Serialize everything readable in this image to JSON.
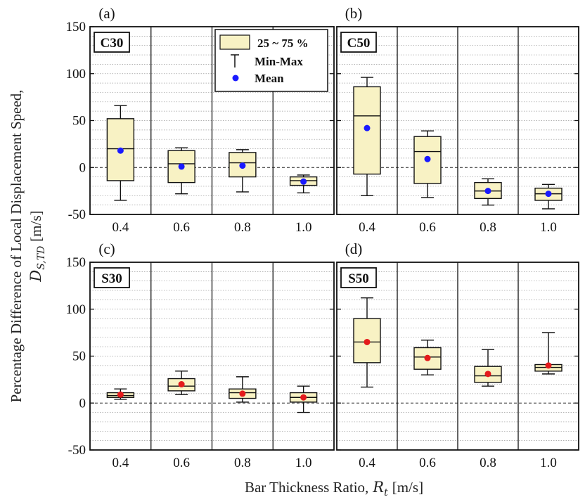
{
  "figure": {
    "y_axis_title": "Percentage Difference of  Local Displacement Speed,",
    "y_axis_symbol": "D",
    "y_axis_subscript": "S,TD",
    "y_axis_unit": "[m/s]",
    "x_axis_title": "Bar Thickness Ratio,",
    "x_axis_symbol": "R",
    "x_axis_subscript": "t",
    "x_axis_unit": "[m/s]"
  },
  "legend": {
    "box_label": "25 ~ 75 %",
    "whisker_label": "Min-Max",
    "mean_label": "Mean"
  },
  "colors": {
    "box_fill": "#f8f2c4",
    "mean_top": "#1a1aff",
    "mean_bottom": "#e41a1c",
    "grid": "#9a9a9a",
    "axis": "#111111"
  },
  "chart_data": [
    {
      "type": "box",
      "panel_letter": "(a)",
      "tag": "C30",
      "categories": [
        "0.4",
        "0.6",
        "0.8",
        "1.0"
      ],
      "ylim": [
        -50,
        150
      ],
      "yticks": [
        "-50",
        "0",
        "50",
        "100",
        "150"
      ],
      "show_y_ticklabels": true,
      "mean_color": "#1a1aff",
      "boxes": [
        {
          "min": -35,
          "q1": -14,
          "median": 20,
          "q3": 52,
          "max": 66,
          "mean": 18
        },
        {
          "min": -28,
          "q1": -16,
          "median": 4,
          "q3": 18,
          "max": 21,
          "mean": 1
        },
        {
          "min": -26,
          "q1": -10,
          "median": 5,
          "q3": 16,
          "max": 19,
          "mean": 2
        },
        {
          "min": -27,
          "q1": -19,
          "median": -14,
          "q3": -10,
          "max": -8,
          "mean": -15
        }
      ]
    },
    {
      "type": "box",
      "panel_letter": "(b)",
      "tag": "C50",
      "categories": [
        "0.4",
        "0.6",
        "0.8",
        "1.0"
      ],
      "ylim": [
        -50,
        150
      ],
      "yticks": [
        "-50",
        "0",
        "50",
        "100",
        "150"
      ],
      "show_y_ticklabels": false,
      "mean_color": "#1a1aff",
      "boxes": [
        {
          "min": -30,
          "q1": -7,
          "median": 55,
          "q3": 86,
          "max": 96,
          "mean": 42
        },
        {
          "min": -32,
          "q1": -17,
          "median": 17,
          "q3": 33,
          "max": 39,
          "mean": 9
        },
        {
          "min": -40,
          "q1": -33,
          "median": -25,
          "q3": -16,
          "max": -12,
          "mean": -25
        },
        {
          "min": -44,
          "q1": -35,
          "median": -28,
          "q3": -22,
          "max": -18,
          "mean": -28
        }
      ]
    },
    {
      "type": "box",
      "panel_letter": "(c)",
      "tag": "S30",
      "categories": [
        "0.4",
        "0.6",
        "0.8",
        "1.0"
      ],
      "ylim": [
        -50,
        150
      ],
      "yticks": [
        "-50",
        "0",
        "50",
        "100",
        "150"
      ],
      "show_y_ticklabels": true,
      "mean_color": "#e41a1c",
      "boxes": [
        {
          "min": 4,
          "q1": 6,
          "median": 8,
          "q3": 11,
          "max": 15,
          "mean": 9
        },
        {
          "min": 9,
          "q1": 13,
          "median": 18,
          "q3": 26,
          "max": 34,
          "mean": 20
        },
        {
          "min": 1,
          "q1": 5,
          "median": 11,
          "q3": 15,
          "max": 28,
          "mean": 10
        },
        {
          "min": -10,
          "q1": 1,
          "median": 6,
          "q3": 11,
          "max": 18,
          "mean": 6
        }
      ]
    },
    {
      "type": "box",
      "panel_letter": "(d)",
      "tag": "S50",
      "categories": [
        "0.4",
        "0.6",
        "0.8",
        "1.0"
      ],
      "ylim": [
        -50,
        150
      ],
      "yticks": [
        "-50",
        "0",
        "50",
        "100",
        "150"
      ],
      "show_y_ticklabels": false,
      "mean_color": "#e41a1c",
      "boxes": [
        {
          "min": 17,
          "q1": 43,
          "median": 65,
          "q3": 90,
          "max": 112,
          "mean": 65
        },
        {
          "min": 30,
          "q1": 36,
          "median": 49,
          "q3": 59,
          "max": 67,
          "mean": 48
        },
        {
          "min": 18,
          "q1": 22,
          "median": 29,
          "q3": 39,
          "max": 57,
          "mean": 31
        },
        {
          "min": 31,
          "q1": 34,
          "median": 38,
          "q3": 41,
          "max": 75,
          "mean": 40
        }
      ]
    }
  ]
}
